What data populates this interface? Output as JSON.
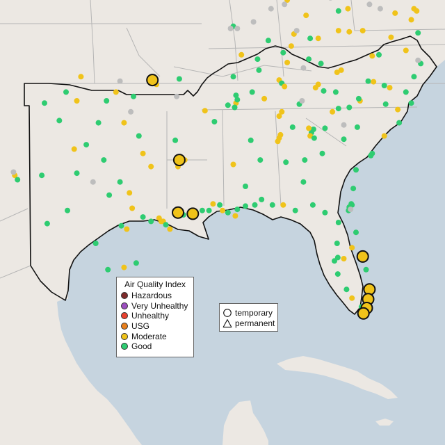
{
  "legend": {
    "aqi_title": "Air Quality Index",
    "aqi_items": [
      {
        "label": "Hazardous",
        "color": "#7e2a2a"
      },
      {
        "label": "Very Unhealthy",
        "color": "#9c4fbf"
      },
      {
        "label": "Unhealthy",
        "color": "#e8412e"
      },
      {
        "label": "USG",
        "color": "#e8801c"
      },
      {
        "label": "Moderate",
        "color": "#f0c31a"
      },
      {
        "label": "Good",
        "color": "#2ecc71"
      }
    ],
    "shape_items": [
      {
        "label": "temporary",
        "shape": "circle-icon"
      },
      {
        "label": "permanent",
        "shape": "triangle-icon"
      }
    ]
  },
  "colors": {
    "water": "#c6d4df",
    "land": "#ece8e3",
    "border": "#b5b5b5",
    "region_outline": "#111111",
    "no_data": "#bdbdbd",
    "moderate": "#f0c31a",
    "good": "#2ecc71"
  },
  "map_extent": {
    "lon": [
      -107.5,
      -74.5
    ],
    "lat": [
      19.5,
      39.8
    ]
  },
  "stations": {
    "small": [
      {
        "lon": -104.2,
        "lat": 35.1,
        "aqi": "good"
      },
      {
        "lon": -102.6,
        "lat": 35.6,
        "aqi": "good"
      },
      {
        "lon": -101.5,
        "lat": 36.3,
        "aqi": "moderate"
      },
      {
        "lon": -101.8,
        "lat": 35.2,
        "aqi": "moderate"
      },
      {
        "lon": -103.1,
        "lat": 34.3,
        "aqi": "good"
      },
      {
        "lon": -101.1,
        "lat": 33.2,
        "aqi": "good"
      },
      {
        "lon": -102.0,
        "lat": 33.0,
        "aqi": "moderate"
      },
      {
        "lon": -100.2,
        "lat": 34.2,
        "aqi": "good"
      },
      {
        "lon": -99.6,
        "lat": 35.2,
        "aqi": "good"
      },
      {
        "lon": -98.9,
        "lat": 35.6,
        "aqi": "moderate"
      },
      {
        "lon": -98.6,
        "lat": 36.1,
        "aqi": "none"
      },
      {
        "lon": -97.6,
        "lat": 35.4,
        "aqi": "good"
      },
      {
        "lon": -97.8,
        "lat": 34.7,
        "aqi": "none"
      },
      {
        "lon": -98.3,
        "lat": 34.2,
        "aqi": "moderate"
      },
      {
        "lon": -97.2,
        "lat": 33.6,
        "aqi": "good"
      },
      {
        "lon": -96.9,
        "lat": 32.8,
        "aqi": "moderate"
      },
      {
        "lon": -96.3,
        "lat": 32.2,
        "aqi": "moderate"
      },
      {
        "lon": -97.9,
        "lat": 31.0,
        "aqi": "moderate"
      },
      {
        "lon": -98.6,
        "lat": 31.5,
        "aqi": "good"
      },
      {
        "lon": -99.4,
        "lat": 30.9,
        "aqi": "good"
      },
      {
        "lon": -99.8,
        "lat": 32.5,
        "aqi": "good"
      },
      {
        "lon": -100.6,
        "lat": 31.5,
        "aqi": "none"
      },
      {
        "lon": -101.8,
        "lat": 31.9,
        "aqi": "good"
      },
      {
        "lon": -102.5,
        "lat": 30.2,
        "aqi": "good"
      },
      {
        "lon": -104.4,
        "lat": 31.8,
        "aqi": "good"
      },
      {
        "lon": -106.4,
        "lat": 31.8,
        "aqi": "moderate"
      },
      {
        "lon": -106.2,
        "lat": 31.6,
        "aqi": "good"
      },
      {
        "lon": -106.5,
        "lat": 31.95,
        "aqi": "none"
      },
      {
        "lon": -104.0,
        "lat": 29.6,
        "aqi": "good"
      },
      {
        "lon": -100.4,
        "lat": 28.7,
        "aqi": "good"
      },
      {
        "lon": -99.5,
        "lat": 27.5,
        "aqi": "good"
      },
      {
        "lon": -98.3,
        "lat": 27.6,
        "aqi": "moderate"
      },
      {
        "lon": -97.4,
        "lat": 27.8,
        "aqi": "good"
      },
      {
        "lon": -97.9,
        "lat": 26.2,
        "aqi": "good"
      },
      {
        "lon": -97.5,
        "lat": 25.95,
        "aqi": "good"
      },
      {
        "lon": -98.5,
        "lat": 29.5,
        "aqi": "good"
      },
      {
        "lon": -98.1,
        "lat": 29.35,
        "aqi": "moderate"
      },
      {
        "lon": -97.7,
        "lat": 30.3,
        "aqi": "moderate"
      },
      {
        "lon": -96.9,
        "lat": 29.9,
        "aqi": "good"
      },
      {
        "lon": -96.3,
        "lat": 29.7,
        "aqi": "good"
      },
      {
        "lon": -95.7,
        "lat": 29.85,
        "aqi": "moderate"
      },
      {
        "lon": -95.55,
        "lat": 29.7,
        "aqi": "moderate"
      },
      {
        "lon": -95.4,
        "lat": 29.7,
        "aqi": "moderate"
      },
      {
        "lon": -95.2,
        "lat": 29.55,
        "aqi": "good"
      },
      {
        "lon": -94.9,
        "lat": 29.35,
        "aqi": "moderate"
      },
      {
        "lon": -94.5,
        "lat": 30.1,
        "aqi": "moderate"
      },
      {
        "lon": -93.9,
        "lat": 30.0,
        "aqi": "good"
      },
      {
        "lon": -93.8,
        "lat": 32.5,
        "aqi": "moderate"
      },
      {
        "lon": -94.3,
        "lat": 32.2,
        "aqi": "moderate"
      },
      {
        "lon": -94.5,
        "lat": 33.4,
        "aqi": "good"
      },
      {
        "lon": -93.3,
        "lat": 30.2,
        "aqi": "good"
      },
      {
        "lon": -92.5,
        "lat": 30.2,
        "aqi": "good"
      },
      {
        "lon": -92.0,
        "lat": 30.2,
        "aqi": "good"
      },
      {
        "lon": -91.7,
        "lat": 30.5,
        "aqi": "moderate"
      },
      {
        "lon": -91.2,
        "lat": 30.45,
        "aqi": "good"
      },
      {
        "lon": -91.0,
        "lat": 30.2,
        "aqi": "moderate"
      },
      {
        "lon": -90.6,
        "lat": 30.1,
        "aqi": "good"
      },
      {
        "lon": -90.05,
        "lat": 29.95,
        "aqi": "moderate"
      },
      {
        "lon": -89.9,
        "lat": 30.25,
        "aqi": "good"
      },
      {
        "lon": -89.3,
        "lat": 30.4,
        "aqi": "good"
      },
      {
        "lon": -88.6,
        "lat": 30.45,
        "aqi": "good"
      },
      {
        "lon": -88.1,
        "lat": 30.7,
        "aqi": "good"
      },
      {
        "lon": -87.3,
        "lat": 30.45,
        "aqi": "good"
      },
      {
        "lon": -86.5,
        "lat": 30.45,
        "aqi": "moderate"
      },
      {
        "lon": -85.6,
        "lat": 30.2,
        "aqi": "good"
      },
      {
        "lon": -84.3,
        "lat": 30.45,
        "aqi": "good"
      },
      {
        "lon": -83.4,
        "lat": 30.1,
        "aqi": "good"
      },
      {
        "lon": -82.4,
        "lat": 29.65,
        "aqi": "good"
      },
      {
        "lon": -82.45,
        "lat": 28.05,
        "aqi": "good"
      },
      {
        "lon": -82.7,
        "lat": 27.9,
        "aqi": "good"
      },
      {
        "lon": -82.0,
        "lat": 28.0,
        "aqi": "moderate"
      },
      {
        "lon": -81.4,
        "lat": 28.5,
        "aqi": "moderate"
      },
      {
        "lon": -81.1,
        "lat": 29.2,
        "aqi": "good"
      },
      {
        "lon": -81.6,
        "lat": 30.35,
        "aqi": "good"
      },
      {
        "lon": -81.4,
        "lat": 30.45,
        "aqi": "good"
      },
      {
        "lon": -81.65,
        "lat": 30.2,
        "aqi": "good"
      },
      {
        "lon": -81.5,
        "lat": 30.25,
        "aqi": "none"
      },
      {
        "lon": -81.45,
        "lat": 30.5,
        "aqi": "good"
      },
      {
        "lon": -80.6,
        "lat": 28.1,
        "aqi": "good"
      },
      {
        "lon": -80.35,
        "lat": 27.5,
        "aqi": "good"
      },
      {
        "lon": -81.8,
        "lat": 26.6,
        "aqi": "good"
      },
      {
        "lon": -81.4,
        "lat": 26.2,
        "aqi": "moderate"
      },
      {
        "lon": -80.7,
        "lat": 25.8,
        "aqi": "good"
      },
      {
        "lon": -80.1,
        "lat": 26.4,
        "aqi": "good"
      },
      {
        "lon": -80.2,
        "lat": 25.9,
        "aqi": "moderate"
      },
      {
        "lon": -82.45,
        "lat": 27.3,
        "aqi": "good"
      },
      {
        "lon": -82.5,
        "lat": 28.7,
        "aqi": "good"
      },
      {
        "lon": -83.6,
        "lat": 32.8,
        "aqi": "good"
      },
      {
        "lon": -84.4,
        "lat": 33.75,
        "aqi": "good"
      },
      {
        "lon": -84.25,
        "lat": 33.9,
        "aqi": "good"
      },
      {
        "lon": -84.5,
        "lat": 33.6,
        "aqi": "moderate"
      },
      {
        "lon": -84.6,
        "lat": 33.95,
        "aqi": "moderate"
      },
      {
        "lon": -84.2,
        "lat": 33.5,
        "aqi": "good"
      },
      {
        "lon": -83.4,
        "lat": 33.95,
        "aqi": "good"
      },
      {
        "lon": -82.0,
        "lat": 33.45,
        "aqi": "good"
      },
      {
        "lon": -81.1,
        "lat": 32.05,
        "aqi": "good"
      },
      {
        "lon": -81.3,
        "lat": 31.2,
        "aqi": "good"
      },
      {
        "lon": -84.9,
        "lat": 32.5,
        "aqi": "good"
      },
      {
        "lon": -85.0,
        "lat": 31.5,
        "aqi": "good"
      },
      {
        "lon": -86.3,
        "lat": 32.4,
        "aqi": "good"
      },
      {
        "lon": -86.8,
        "lat": 33.5,
        "aqi": "moderate"
      },
      {
        "lon": -86.9,
        "lat": 33.35,
        "aqi": "moderate"
      },
      {
        "lon": -86.7,
        "lat": 33.65,
        "aqi": "moderate"
      },
      {
        "lon": -85.8,
        "lat": 34.0,
        "aqi": "good"
      },
      {
        "lon": -86.6,
        "lat": 34.7,
        "aqi": "moderate"
      },
      {
        "lon": -86.8,
        "lat": 34.5,
        "aqi": "moderate"
      },
      {
        "lon": -88.2,
        "lat": 32.5,
        "aqi": "good"
      },
      {
        "lon": -88.9,
        "lat": 33.4,
        "aqi": "good"
      },
      {
        "lon": -90.2,
        "lat": 32.3,
        "aqi": "moderate"
      },
      {
        "lon": -89.3,
        "lat": 31.3,
        "aqi": "good"
      },
      {
        "lon": -90.0,
        "lat": 35.1,
        "aqi": "moderate"
      },
      {
        "lon": -90.1,
        "lat": 34.9,
        "aqi": "good"
      },
      {
        "lon": -89.9,
        "lat": 35.25,
        "aqi": "good"
      },
      {
        "lon": -88.8,
        "lat": 35.6,
        "aqi": "good"
      },
      {
        "lon": -86.8,
        "lat": 36.15,
        "aqi": "moderate"
      },
      {
        "lon": -86.6,
        "lat": 36.0,
        "aqi": "good"
      },
      {
        "lon": -86.4,
        "lat": 35.85,
        "aqi": "moderate"
      },
      {
        "lon": -85.3,
        "lat": 35.05,
        "aqi": "good"
      },
      {
        "lon": -85.1,
        "lat": 35.2,
        "aqi": "none"
      },
      {
        "lon": -83.9,
        "lat": 35.95,
        "aqi": "moderate"
      },
      {
        "lon": -84.1,
        "lat": 35.8,
        "aqi": "moderate"
      },
      {
        "lon": -83.5,
        "lat": 35.65,
        "aqi": "good"
      },
      {
        "lon": -82.6,
        "lat": 35.6,
        "aqi": "good"
      },
      {
        "lon": -82.5,
        "lat": 36.5,
        "aqi": "moderate"
      },
      {
        "lon": -82.2,
        "lat": 36.6,
        "aqi": "moderate"
      },
      {
        "lon": -80.8,
        "lat": 35.2,
        "aqi": "moderate"
      },
      {
        "lon": -80.9,
        "lat": 35.3,
        "aqi": "good"
      },
      {
        "lon": -80.2,
        "lat": 36.1,
        "aqi": "good"
      },
      {
        "lon": -79.8,
        "lat": 36.07,
        "aqi": "moderate"
      },
      {
        "lon": -79.0,
        "lat": 35.9,
        "aqi": "good"
      },
      {
        "lon": -78.6,
        "lat": 35.8,
        "aqi": "moderate"
      },
      {
        "lon": -77.9,
        "lat": 34.2,
        "aqi": "good"
      },
      {
        "lon": -77.4,
        "lat": 35.6,
        "aqi": "good"
      },
      {
        "lon": -78.9,
        "lat": 35.05,
        "aqi": "good"
      },
      {
        "lon": -81.0,
        "lat": 34.0,
        "aqi": "good"
      },
      {
        "lon": -81.6,
        "lat": 34.9,
        "aqi": "good"
      },
      {
        "lon": -82.4,
        "lat": 34.85,
        "aqi": "good"
      },
      {
        "lon": -79.9,
        "lat": 32.8,
        "aqi": "good"
      },
      {
        "lon": -80.0,
        "lat": 32.7,
        "aqi": "good"
      },
      {
        "lon": -79.0,
        "lat": 33.6,
        "aqi": "moderate"
      },
      {
        "lon": -79.4,
        "lat": 37.3,
        "aqi": "good"
      },
      {
        "lon": -79.9,
        "lat": 37.25,
        "aqi": "moderate"
      },
      {
        "lon": -77.4,
        "lat": 37.5,
        "aqi": "moderate"
      },
      {
        "lon": -76.3,
        "lat": 36.9,
        "aqi": "good"
      },
      {
        "lon": -76.5,
        "lat": 37.05,
        "aqi": "none"
      },
      {
        "lon": -77.0,
        "lat": 38.9,
        "aqi": "moderate"
      },
      {
        "lon": -76.6,
        "lat": 39.3,
        "aqi": "moderate"
      },
      {
        "lon": -76.8,
        "lat": 39.4,
        "aqi": "moderate"
      },
      {
        "lon": -78.2,
        "lat": 39.2,
        "aqi": "moderate"
      },
      {
        "lon": -78.5,
        "lat": 38.1,
        "aqi": "moderate"
      },
      {
        "lon": -80.6,
        "lat": 38.4,
        "aqi": "moderate"
      },
      {
        "lon": -81.6,
        "lat": 38.35,
        "aqi": "moderate"
      },
      {
        "lon": -82.4,
        "lat": 38.4,
        "aqi": "moderate"
      },
      {
        "lon": -83.9,
        "lat": 38.05,
        "aqi": "moderate"
      },
      {
        "lon": -84.5,
        "lat": 38.05,
        "aqi": "good"
      },
      {
        "lon": -85.7,
        "lat": 38.25,
        "aqi": "moderate"
      },
      {
        "lon": -85.5,
        "lat": 38.4,
        "aqi": "none"
      },
      {
        "lon": -86.5,
        "lat": 37.4,
        "aqi": "good"
      },
      {
        "lon": -87.6,
        "lat": 37.95,
        "aqi": "good"
      },
      {
        "lon": -88.4,
        "lat": 37.1,
        "aqi": "good"
      },
      {
        "lon": -89.6,
        "lat": 37.3,
        "aqi": "moderate"
      },
      {
        "lon": -90.2,
        "lat": 38.6,
        "aqi": "good"
      },
      {
        "lon": -90.4,
        "lat": 38.5,
        "aqi": "none"
      },
      {
        "lon": -89.9,
        "lat": 38.5,
        "aqi": "none"
      },
      {
        "lon": -88.7,
        "lat": 38.8,
        "aqi": "none"
      },
      {
        "lon": -87.4,
        "lat": 39.4,
        "aqi": "none"
      },
      {
        "lon": -86.2,
        "lat": 39.8,
        "aqi": "moderate"
      },
      {
        "lon": -86.4,
        "lat": 39.6,
        "aqi": "none"
      },
      {
        "lon": -84.8,
        "lat": 39.1,
        "aqi": "moderate"
      },
      {
        "lon": -83.0,
        "lat": 39.9,
        "aqi": "none"
      },
      {
        "lon": -82.4,
        "lat": 39.3,
        "aqi": "good"
      },
      {
        "lon": -81.7,
        "lat": 39.4,
        "aqi": "moderate"
      },
      {
        "lon": -80.1,
        "lat": 39.6,
        "aqi": "none"
      },
      {
        "lon": -79.3,
        "lat": 39.4,
        "aqi": "none"
      },
      {
        "lon": -84.6,
        "lat": 37.1,
        "aqi": "good"
      },
      {
        "lon": -85.0,
        "lat": 36.7,
        "aqi": "none"
      },
      {
        "lon": -83.7,
        "lat": 36.9,
        "aqi": "good"
      },
      {
        "lon": -85.9,
        "lat": 37.7,
        "aqi": "moderate"
      },
      {
        "lon": -87.9,
        "lat": 35.3,
        "aqi": "moderate"
      },
      {
        "lon": -88.3,
        "lat": 36.6,
        "aqi": "good"
      },
      {
        "lon": -86.2,
        "lat": 36.95,
        "aqi": "moderate"
      },
      {
        "lon": -90.2,
        "lat": 36.3,
        "aqi": "good"
      },
      {
        "lon": -90.6,
        "lat": 35.0,
        "aqi": "good"
      },
      {
        "lon": -90.0,
        "lat": 35.45,
        "aqi": "good"
      },
      {
        "lon": -91.6,
        "lat": 34.25,
        "aqi": "good"
      },
      {
        "lon": -94.4,
        "lat": 35.4,
        "aqi": "none"
      },
      {
        "lon": -94.2,
        "lat": 36.2,
        "aqi": "good"
      },
      {
        "lon": -92.3,
        "lat": 34.75,
        "aqi": "moderate"
      },
      {
        "lon": -96.0,
        "lat": 36.15,
        "aqi": "good"
      },
      {
        "lon": -95.9,
        "lat": 35.95,
        "aqi": "moderate"
      },
      {
        "lon": -80.3,
        "lat": 25.65,
        "aqi": "good"
      },
      {
        "lon": -80.45,
        "lat": 25.5,
        "aqi": "good"
      },
      {
        "lon": -80.2,
        "lat": 26.2,
        "aqi": "moderate"
      },
      {
        "lon": -80.1,
        "lat": 26.7,
        "aqi": "good"
      },
      {
        "lon": -78.0,
        "lat": 34.8,
        "aqi": "moderate"
      },
      {
        "lon": -77.0,
        "lat": 35.1,
        "aqi": "good"
      },
      {
        "lon": -76.8,
        "lat": 36.3,
        "aqi": "good"
      },
      {
        "lon": -82.85,
        "lat": 34.7,
        "aqi": "moderate"
      },
      {
        "lon": -82.0,
        "lat": 34.1,
        "aqi": "none"
      },
      {
        "lon": -76.5,
        "lat": 38.3,
        "aqi": "good"
      }
    ],
    "large": [
      {
        "lon": -96.2,
        "lat": 36.15,
        "aqi": "moderate"
      },
      {
        "lon": -94.2,
        "lat": 32.5,
        "aqi": "moderate"
      },
      {
        "lon": -94.3,
        "lat": 30.1,
        "aqi": "moderate"
      },
      {
        "lon": -93.2,
        "lat": 30.05,
        "aqi": "moderate"
      },
      {
        "lon": -80.6,
        "lat": 28.1,
        "aqi": "moderate"
      },
      {
        "lon": -80.1,
        "lat": 26.6,
        "aqi": "moderate"
      },
      {
        "lon": -80.2,
        "lat": 26.15,
        "aqi": "moderate"
      },
      {
        "lon": -80.3,
        "lat": 25.75,
        "aqi": "moderate"
      },
      {
        "lon": -80.55,
        "lat": 25.5,
        "aqi": "moderate"
      }
    ]
  }
}
